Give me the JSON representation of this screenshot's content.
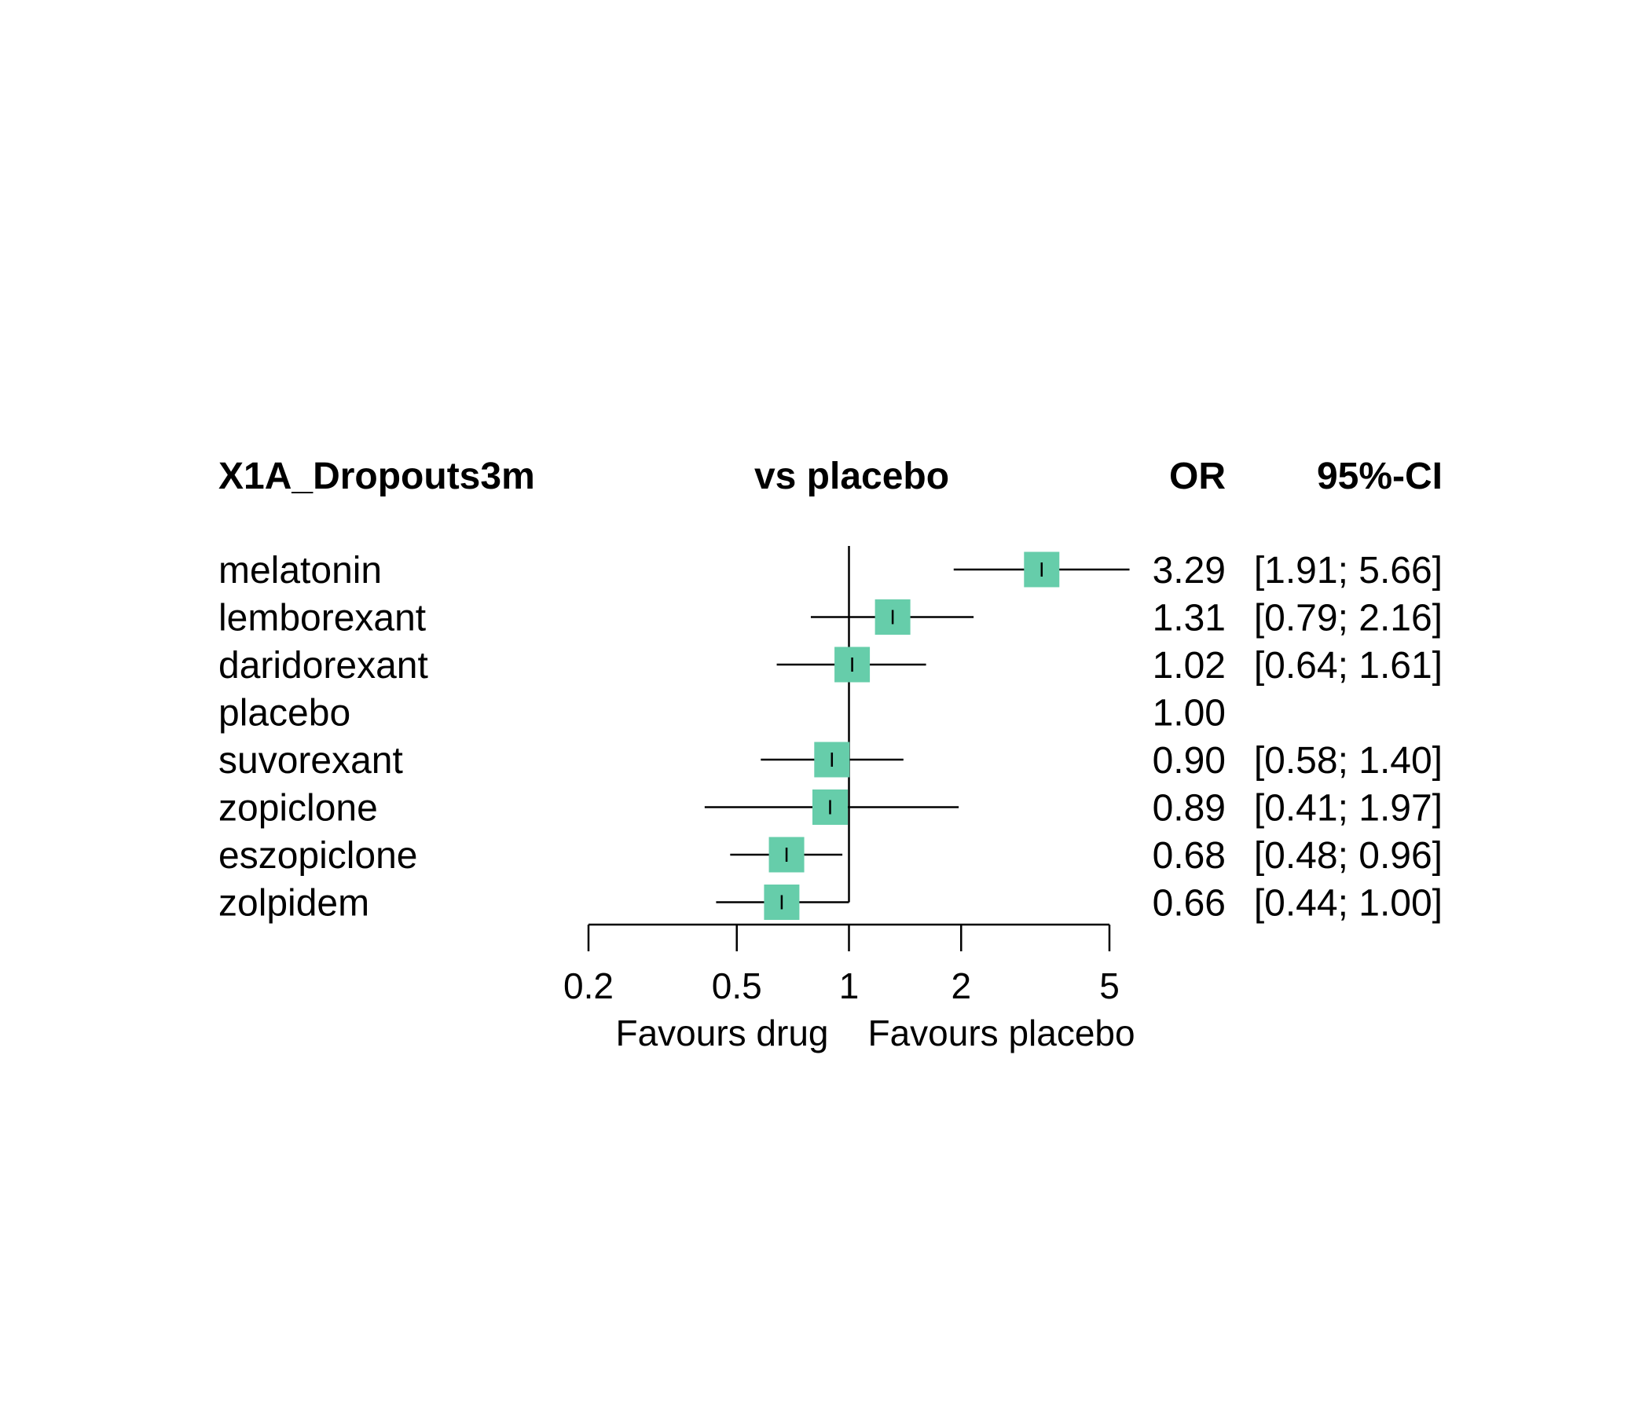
{
  "chart_data": {
    "type": "forest",
    "title": "",
    "headers": {
      "outcome": "X1A_Dropouts3m",
      "comparison": "vs placebo",
      "estimate": "OR",
      "ci": "95%-CI"
    },
    "rows": [
      {
        "label": "melatonin",
        "or": 3.29,
        "lower": 1.91,
        "upper": 5.66,
        "or_text": "3.29",
        "ci_text": "[1.91; 5.66]"
      },
      {
        "label": "lemborexant",
        "or": 1.31,
        "lower": 0.79,
        "upper": 2.16,
        "or_text": "1.31",
        "ci_text": "[0.79; 2.16]"
      },
      {
        "label": "daridorexant",
        "or": 1.02,
        "lower": 0.64,
        "upper": 1.61,
        "or_text": "1.02",
        "ci_text": "[0.64; 1.61]"
      },
      {
        "label": "placebo",
        "or": 1.0,
        "lower": null,
        "upper": null,
        "or_text": "1.00",
        "ci_text": ""
      },
      {
        "label": "suvorexant",
        "or": 0.9,
        "lower": 0.58,
        "upper": 1.4,
        "or_text": "0.90",
        "ci_text": "[0.58; 1.40]"
      },
      {
        "label": "zopiclone",
        "or": 0.89,
        "lower": 0.41,
        "upper": 1.97,
        "or_text": "0.89",
        "ci_text": "[0.41; 1.97]"
      },
      {
        "label": "eszopiclone",
        "or": 0.68,
        "lower": 0.48,
        "upper": 0.96,
        "or_text": "0.68",
        "ci_text": "[0.48; 0.96]"
      },
      {
        "label": "zolpidem",
        "or": 0.66,
        "lower": 0.44,
        "upper": 1.0,
        "or_text": "0.66",
        "ci_text": "[0.44; 1.00]"
      }
    ],
    "x_axis": {
      "scale": "log",
      "ticks": [
        0.2,
        0.5,
        1,
        2,
        5
      ],
      "tick_labels": [
        "0.2",
        "0.5",
        "1",
        "2",
        "5"
      ],
      "xlim": [
        0.2,
        5
      ],
      "reference_line": 1,
      "left_label": "Favours drug",
      "right_label": "Favours placebo"
    },
    "colors": {
      "marker": "#66cdaa",
      "line": "#000000"
    }
  }
}
